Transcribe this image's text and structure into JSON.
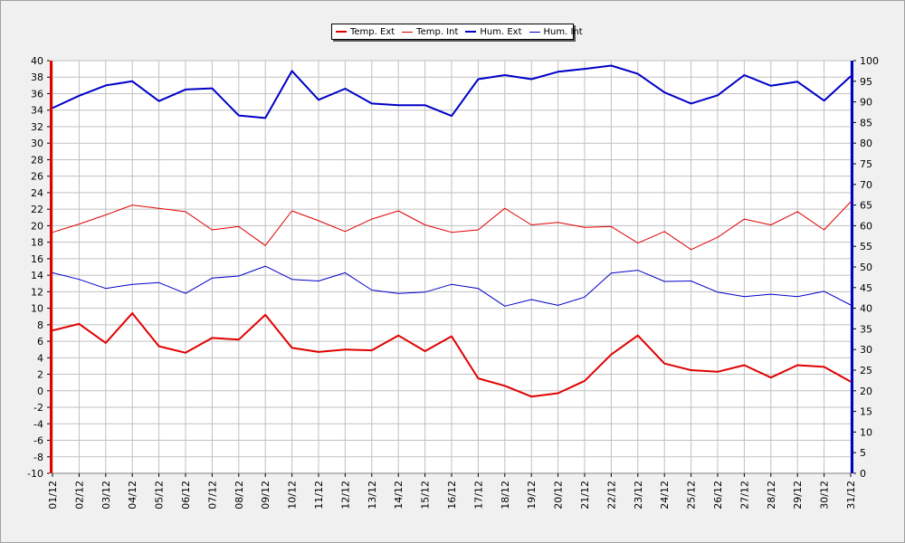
{
  "chart_data": {
    "type": "line",
    "categories": [
      "01/12",
      "02/12",
      "03/12",
      "04/12",
      "05/12",
      "06/12",
      "07/12",
      "08/12",
      "09/12",
      "10/12",
      "11/12",
      "12/12",
      "13/12",
      "14/12",
      "15/12",
      "16/12",
      "17/12",
      "18/12",
      "19/12",
      "20/12",
      "21/12",
      "22/12",
      "23/12",
      "24/12",
      "25/12",
      "26/12",
      "27/12",
      "28/12",
      "29/12",
      "30/12",
      "31/12"
    ],
    "y_left": {
      "min": -10,
      "max": 40,
      "step": 2
    },
    "y_right": {
      "min": 0,
      "max": 100,
      "step": 5
    },
    "grid": true,
    "legend_position": "top",
    "series": [
      {
        "name": "Temp. Ext",
        "axis": "left",
        "color": "#e00000",
        "width": 2,
        "values": [
          7.3,
          8.1,
          5.8,
          9.4,
          5.4,
          4.6,
          6.4,
          6.2,
          9.2,
          5.2,
          4.7,
          5.0,
          4.9,
          6.7,
          4.8,
          6.6,
          1.5,
          0.6,
          -0.7,
          -0.3,
          1.2,
          4.4,
          6.7,
          3.3,
          2.5,
          2.3,
          3.1,
          1.6,
          3.1,
          2.9,
          1.1
        ]
      },
      {
        "name": "Temp. Int",
        "axis": "left",
        "color": "#e00000",
        "width": 1,
        "values": [
          19.2,
          20.2,
          21.3,
          22.5,
          22.1,
          21.7,
          19.5,
          19.9,
          17.6,
          21.8,
          20.6,
          19.3,
          20.8,
          21.8,
          20.1,
          19.2,
          19.5,
          22.1,
          20.1,
          20.4,
          19.8,
          19.9,
          17.9,
          19.3,
          17.1,
          18.6,
          20.8,
          20.1,
          21.7,
          19.5,
          22.9
        ]
      },
      {
        "name": "Hum. Ext",
        "axis": "right",
        "color": "#0000c8",
        "width": 2,
        "values": [
          88.5,
          91.5,
          94,
          95,
          90.2,
          93,
          93.3,
          86.7,
          86.1,
          97.5,
          90.5,
          93.2,
          89.6,
          89.2,
          89.2,
          86.6,
          95.5,
          96.5,
          95.5,
          97.3,
          98,
          98.8,
          96.8,
          92.3,
          89.6,
          91.6,
          96.5,
          93.9,
          94.9,
          90.3,
          96.2
        ]
      },
      {
        "name": "Hum. Int",
        "axis": "right",
        "color": "#0000c8",
        "width": 1,
        "values": [
          48.6,
          47,
          44.8,
          45.8,
          46.2,
          43.6,
          47.3,
          47.8,
          50.2,
          47,
          46.6,
          48.6,
          44.4,
          43.6,
          43.9,
          45.8,
          44.8,
          40.5,
          42.1,
          40.7,
          42.7,
          48.5,
          49.2,
          46.5,
          46.6,
          43.9,
          42.8,
          43.4,
          42.8,
          44.1,
          40.8
        ]
      }
    ]
  }
}
